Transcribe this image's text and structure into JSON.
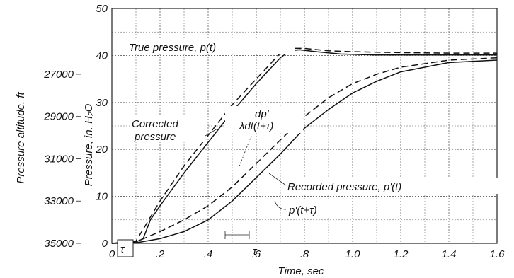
{
  "chart_data": {
    "type": "line",
    "xlabel": "Time, sec",
    "ylabel": "Pressure, in. H₂O",
    "ylabel_secondary": "Pressure altitude, ft",
    "xlim": [
      0,
      1.6
    ],
    "ylim": [
      0,
      50
    ],
    "grid": true,
    "x_ticks": [
      {
        "v": 0,
        "label": "0"
      },
      {
        "v": 0.2,
        "label": ".2"
      },
      {
        "v": 0.4,
        "label": ".4"
      },
      {
        "v": 0.6,
        "label": ".6"
      },
      {
        "v": 0.8,
        "label": ".8"
      },
      {
        "v": 1.0,
        "label": "1.0"
      },
      {
        "v": 1.2,
        "label": "1.2"
      },
      {
        "v": 1.4,
        "label": "1.4"
      },
      {
        "v": 1.6,
        "label": "1.6"
      }
    ],
    "y_ticks": [
      {
        "v": 0,
        "label": "0"
      },
      {
        "v": 10,
        "label": "10"
      },
      {
        "v": 20,
        "label": "20"
      },
      {
        "v": 30,
        "label": "30"
      },
      {
        "v": 40,
        "label": "40"
      },
      {
        "v": 50,
        "label": "50"
      }
    ],
    "y2_ticks": [
      {
        "v": 0,
        "label": "35000"
      },
      {
        "v": 9,
        "label": "33000"
      },
      {
        "v": 18,
        "label": "31000"
      },
      {
        "v": 27,
        "label": "29000"
      },
      {
        "v": 36,
        "label": "27000"
      }
    ],
    "series": [
      {
        "name": "True pressure, p(t)",
        "style": "dashed",
        "x": [
          0,
          0.1,
          0.13,
          0.2,
          0.3,
          0.4,
          0.5,
          0.6,
          0.7,
          0.75,
          0.8,
          0.9,
          1.0,
          1.2,
          1.4,
          1.6
        ],
        "y": [
          0,
          0.5,
          3,
          9,
          16.5,
          23,
          29.5,
          35,
          40.5,
          41.5,
          41.5,
          41,
          40.8,
          40.6,
          40.5,
          40.5
        ]
      },
      {
        "name": "Corrected pressure",
        "style": "solid",
        "x": [
          0,
          0.1,
          0.13,
          0.16,
          0.2,
          0.3,
          0.4,
          0.5,
          0.6,
          0.7,
          0.74,
          0.78,
          0.85,
          0.95,
          1.1,
          1.3,
          1.6
        ],
        "y": [
          0,
          0.3,
          1,
          5,
          8,
          15,
          21.5,
          28,
          34,
          39.5,
          41,
          41.2,
          40.8,
          40.3,
          40.1,
          40.1,
          40.1
        ]
      },
      {
        "name": "Recorded pressure, p'(t)",
        "style": "dashed",
        "x": [
          0,
          0.1,
          0.2,
          0.3,
          0.4,
          0.5,
          0.6,
          0.7,
          0.8,
          0.9,
          1.0,
          1.1,
          1.2,
          1.4,
          1.6
        ],
        "y": [
          0,
          0.3,
          2.5,
          5,
          8,
          12,
          17,
          22,
          27,
          31,
          34,
          36,
          37.5,
          39,
          39.5
        ]
      },
      {
        "name": "p'(t+τ)",
        "style": "solid",
        "x": [
          0,
          0.1,
          0.2,
          0.3,
          0.4,
          0.5,
          0.6,
          0.7,
          0.8,
          0.9,
          1.0,
          1.1,
          1.2,
          1.4,
          1.6
        ],
        "y": [
          0,
          0.1,
          1,
          2.5,
          5,
          9,
          14,
          19,
          24.5,
          28.5,
          32,
          34.5,
          36.5,
          38.5,
          39
        ]
      }
    ],
    "annotations": [
      {
        "name": "true",
        "text": "True pressure, p(t)"
      },
      {
        "name": "corrected-1",
        "text": "Corrected"
      },
      {
        "name": "corrected-2",
        "text": "pressure"
      },
      {
        "name": "dp-1",
        "text": "dp'"
      },
      {
        "name": "dp-2",
        "text": "λdt(t+τ)"
      },
      {
        "name": "recorded",
        "text": "Recorded pressure, p'(t)"
      },
      {
        "name": "ptau",
        "text": "p'(t+τ)"
      },
      {
        "name": "tau-box",
        "text": "τ"
      },
      {
        "name": "tau",
        "text": "τ"
      }
    ]
  }
}
